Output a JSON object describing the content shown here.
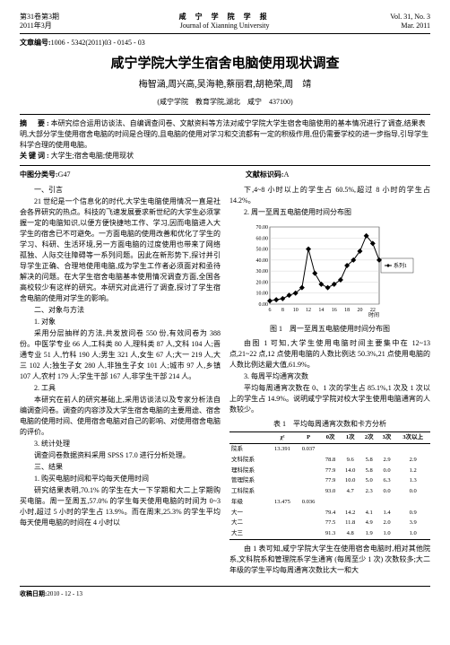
{
  "header": {
    "vol_cn": "第31卷第3期",
    "date_cn": "2011年3月",
    "journal_cn": "咸 宁 学 院 学 报",
    "journal_en": "Journal of Xianning University",
    "vol_en": "Vol. 31, No. 3",
    "date_en": "Mar. 2011"
  },
  "article_id_label": "文章编号:",
  "article_id": "1006 - 5342(2011)03 - 0145 - 03",
  "title": "咸宁学院大学生宿舍电脑使用现状调查",
  "authors": "梅智涵,周兴高,吴海艳,蔡丽君,胡艳荣,周　靖",
  "affiliation": "(咸宁学院　教育学院,湖北　咸宁　437100)",
  "abstract_label": "摘　要:",
  "abstract_text": "本研究综合运用访谈法、自编调查问卷、文献资料等方法对咸宁学院大学生宿舍电脑使用的基本情况进行了调查,结果表明,大部分学生使用宿舍电脑的时间是合理的,且电脑的使用对学习和交流都有一定的积极作用,但仍需要学校的进一步指导,引导学生科学合理的使用电脑。",
  "keywords_label": "关键词:",
  "keywords": "大学生;宿舍电脑;使用现状",
  "clc_label": "中图分类号:",
  "clc": "G47",
  "doccode_label": "文献标识码:",
  "doccode": "A",
  "left_col": {
    "s1_head": "一、引言",
    "s1_p1": "21 世纪是一个信息化的时代,大学生电脑使用情况一直是社会各界研究的热点。科技的飞速发展要求新世纪的大学生必须掌握一定的电脑知识,以便方便快捷地工作、学习,因而电脑进入大学生的宿舍已不可避免。一方面电脑的使用改善和优化了学生的学习、科研、生活环境,另一方面电脑的过度使用也带来了网络孤独、人际交往障碍等一系列问题。因此在新形势下,探讨并引导学生正确、合理地使用电脑,成为学生工作者必须面对和亟待解决的问题。在大学生宿舍电脑基本使用情况调查方面,全国各高校较少有这样的研究。本研究对此进行了调查,探讨了学生宿舍电脑的使用对学生的影响。",
    "s2_head": "二、对象与方法",
    "s2_1": "1. 对象",
    "s2_1_p": "采用分层抽样的方法,共发放问卷 550 份,有效问卷为 388 份。中医学专业 66 人,工科类 80 人,理科类 87 人,文科 104 人;晋通专业 51 人,竹科 190 人;男生 321 人,女生 67 人;大一 219 人,大三 102 人;独生子女 280 人,非独生子女 101 人;城市 97 人,乡镇 107 人,农村 179 人;学生干部 167 人,非学生干部 214 人。",
    "s2_2": "2. 工具",
    "s2_2_p": "本研究在前人的研究基础上,采用访谈法以及专家分析法自编调查问卷。调查的内容涉及大学生宿舍电脑的主要用途、宿舍电脑的使用时间、使用宿舍电脑对自己的影响、对使用宿舍电脑的评价。",
    "s2_3": "3. 统计处理",
    "s2_3_p": "调查问卷数据资料采用 SPSS 17.0 进行分析处理。",
    "s3_head": "三、结果",
    "s3_1": "1. 购买电脑时间和平均每天使用时间",
    "s3_1_p": "研究结果表明,70.1% 的学生在大一下学期和大二上学期购买电脑。周一至周五,57.0% 的学生每天使用电脑的时间为 0~3 小时,超过 5 小时的学生占 13.9%。而在周末,25.3% 的学生平均每天使用电脑的时间在 4 小时以"
  },
  "right_col": {
    "r_p1": "下,4~8 小时以上的学生占 60.5%,超过 8 小时的学生占 14.2%。",
    "r_sub2": "2. 周一至周五电脑使用时间分布图",
    "fig1_caption": "图 1　周一至周五电脑使用时间分布图",
    "r_p2": "由图 1 可知,大学生使用电脑时间主要集中在 12~13 点,21~22 点,12 点使用电脑的人数比例达 50.3%,21 点使用电脑的人数比例达最大值,61.9%。",
    "r_sub3": "3. 每周平均通宵次数",
    "r_p3": "平均每周通宵次数在 0、1 次的学生占 85.1%,1 次及 1 次以上的学生占 14.9%。说明咸宁学院对校大学生使用电脑通宵的人数较少。",
    "tab1_caption": "表 1　平均每周通宵次数和卡方分析",
    "r_p4": "由 1 表可知,咸宁学院大学生在使用宿舍电脑时,相对其他院系,文科院系和管理院系学生通宵 (每周至少 1 次) 次数较多;大二年级的学生平均每周通宵次数比大一和大"
  },
  "chart": {
    "type": "line",
    "x": [
      6,
      7,
      8,
      9,
      10,
      11,
      12,
      13,
      14,
      15,
      16,
      17,
      18,
      19,
      20,
      21,
      22,
      23
    ],
    "y": [
      3,
      4,
      5,
      8,
      10,
      15,
      50,
      28,
      18,
      15,
      18,
      22,
      35,
      40,
      48,
      62,
      55,
      40
    ],
    "xlim": [
      6,
      23
    ],
    "ylim": [
      0,
      70
    ],
    "ytick_step": 10,
    "line_color": "#000000",
    "marker": "diamond",
    "marker_size": 3,
    "grid_color": "#cccccc",
    "background": "#ffffff",
    "xlabel": "时间",
    "ylabel_suffix": ".00",
    "legend": "系列1",
    "width": 190,
    "height": 110,
    "label_fontsize": 6
  },
  "table": {
    "columns": [
      "",
      "χ²",
      "P",
      "0次",
      "1次",
      "2次",
      "3次",
      "3次以上"
    ],
    "rows": [
      [
        "院系",
        "13.391",
        "0.037",
        "",
        "",
        "",
        "",
        ""
      ],
      [
        "文科院系",
        "",
        "",
        "78.8",
        "9.6",
        "5.8",
        "2.9",
        "2.9"
      ],
      [
        "理科院系",
        "",
        "",
        "77.9",
        "14.0",
        "5.8",
        "0.0",
        "1.2"
      ],
      [
        "管理院系",
        "",
        "",
        "77.9",
        "10.0",
        "5.0",
        "6.3",
        "1.3"
      ],
      [
        "工科院系",
        "",
        "",
        "93.0",
        "4.7",
        "2.3",
        "0.0",
        "0.0"
      ],
      [
        "年级",
        "13.475",
        "0.036",
        "",
        "",
        "",
        "",
        ""
      ],
      [
        "大一",
        "",
        "",
        "79.4",
        "14.2",
        "4.1",
        "1.4",
        "0.9"
      ],
      [
        "大二",
        "",
        "",
        "77.5",
        "11.8",
        "4.9",
        "2.0",
        "3.9"
      ],
      [
        "大三",
        "",
        "",
        "91.3",
        "4.8",
        "1.9",
        "1.0",
        "1.0"
      ]
    ],
    "col_align": [
      "left",
      "center",
      "center",
      "center",
      "center",
      "center",
      "center",
      "center"
    ],
    "font_size": 6.5
  },
  "footer": {
    "label": "收稿日期:",
    "date": "2010 - 12 - 13"
  }
}
